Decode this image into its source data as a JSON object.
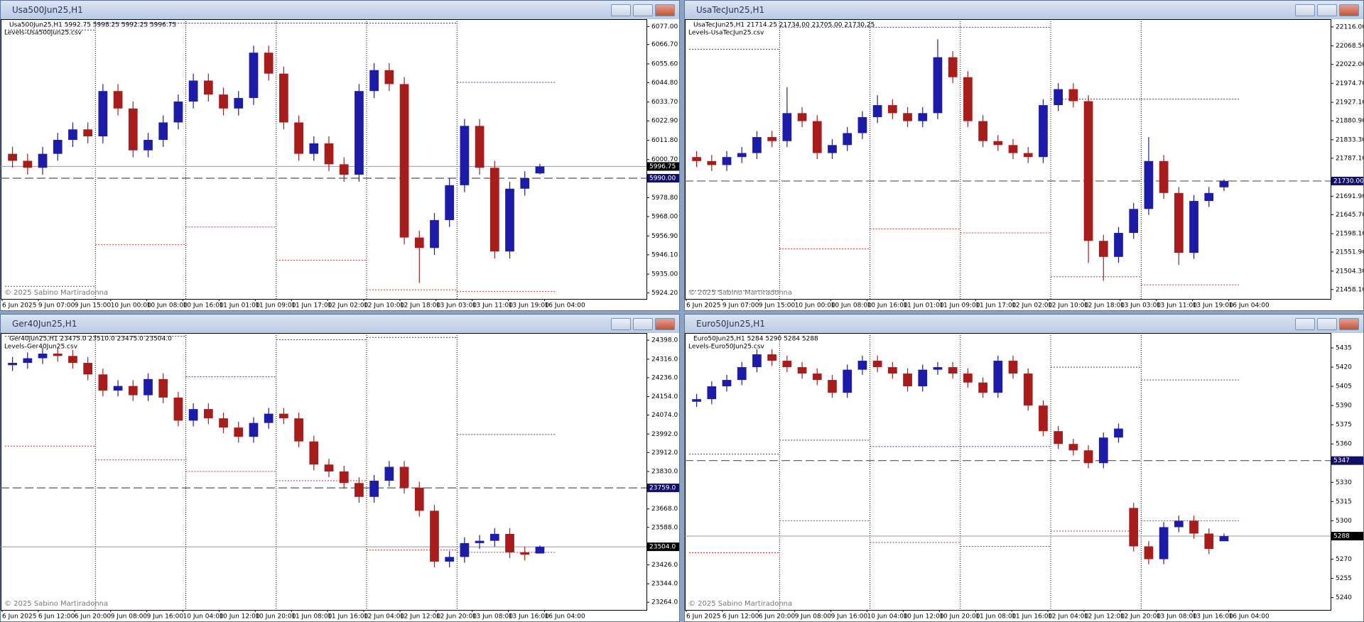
{
  "windows": [
    {
      "title": "Usa500Jun25,H1"
    },
    {
      "title": "UsaTecJun25,H1"
    },
    {
      "title": "Ger40Jun25,H1"
    },
    {
      "title": "Euro50Jun25,H1"
    }
  ],
  "chart_data": [
    {
      "type": "candlestick",
      "info": "Usa500Jun25,H1  5992.75 5998.25 5992.25 5996.75",
      "indicator": "Levels-Usa500Jun25.csv",
      "copyright": "© 2025 Sabino Martiradonna",
      "x_labels": [
        "6 Jun 2025",
        "9 Jun 07:00",
        "9 Jun 15:00",
        "10 Jun 00:00",
        "10 Jun 08:00",
        "10 Jun 16:00",
        "11 Jun 01:00",
        "11 Jun 09:00",
        "11 Jun 17:00",
        "12 Jun 02:00",
        "12 Jun 10:00",
        "12 Jun 18:00",
        "13 Jun 03:00",
        "13 Jun 11:00",
        "13 Jun 19:00",
        "16 Jun 04:00"
      ],
      "open": [
        6004,
        6000,
        5996,
        6004,
        6012,
        6018,
        6014,
        6040,
        6030,
        6006,
        6012,
        6022,
        6034,
        6046,
        6038,
        6030,
        6036,
        6062,
        6050,
        6022,
        6004,
        6010,
        5998,
        5992,
        6040,
        6052,
        6044,
        5956,
        5950,
        5966,
        5986,
        6020,
        5996,
        5948,
        5984,
        5992.75
      ],
      "high": [
        6008,
        6004,
        6008,
        6016,
        6022,
        6022,
        6044,
        6044,
        6034,
        6016,
        6026,
        6038,
        6050,
        6050,
        6042,
        6040,
        6066,
        6066,
        6054,
        6026,
        6014,
        6014,
        6002,
        6044,
        6056,
        6056,
        6048,
        5960,
        5970,
        5990,
        6024,
        6024,
        6000,
        5988,
        5994,
        5998.25
      ],
      "low": [
        5996,
        5992,
        5992,
        6000,
        6008,
        6010,
        6010,
        6026,
        6002,
        6002,
        6008,
        6018,
        6030,
        6034,
        6026,
        6026,
        6032,
        6046,
        6018,
        6000,
        6000,
        5994,
        5988,
        5988,
        6036,
        6040,
        5952,
        5930,
        5946,
        5962,
        5982,
        5992,
        5944,
        5944,
        5980,
        5992.25
      ],
      "close": [
        6000,
        5996,
        6004,
        6012,
        6018,
        6014,
        6040,
        6030,
        6006,
        6012,
        6022,
        6034,
        6046,
        6038,
        6030,
        6036,
        6062,
        6050,
        6022,
        6004,
        6010,
        5998,
        5992,
        6040,
        6052,
        6044,
        5956,
        5950,
        5966,
        5986,
        6020,
        5996,
        5948,
        5984,
        5990,
        5996.75
      ],
      "ylim": [
        5922,
        6080
      ],
      "yticks": [
        {
          "value": 6077,
          "label": "6077.00"
        },
        {
          "value": 6066.7,
          "label": "6066.70"
        },
        {
          "value": 6055.6,
          "label": "6055.60"
        },
        {
          "value": 6044.8,
          "label": "6044.80"
        },
        {
          "value": 6033.7,
          "label": "6033.70"
        },
        {
          "value": 6022.9,
          "label": "6022.90"
        },
        {
          "value": 6011.8,
          "label": "6011.80"
        },
        {
          "value": 6000.7,
          "label": "6000.70"
        },
        {
          "value": 5978.8,
          "label": "5978.80"
        },
        {
          "value": 5968,
          "label": "5968.00"
        },
        {
          "value": 5956.9,
          "label": "5956.90"
        },
        {
          "value": 5946.1,
          "label": "5946.10"
        },
        {
          "value": 5935,
          "label": "5935.00"
        },
        {
          "value": 5924.2,
          "label": "5924.20"
        }
      ],
      "level": {
        "value": 5990,
        "label": "5990.00"
      },
      "last": {
        "value": 5996.75,
        "label": "5996.75"
      },
      "upper_levels": {
        "color": "#3a3a80",
        "values": [
          6075,
          6079,
          6079,
          6079,
          6079,
          6045
        ]
      },
      "lower_levels": {
        "color": "#c03030",
        "values": [
          5928,
          5952,
          5962,
          5943,
          5926,
          5925
        ]
      },
      "up_color": "#1c1ca8",
      "down_color": "#a81c1c"
    },
    {
      "type": "candlestick",
      "info": "UsaTecJun25,H1  21714.25 21734.00 21705.00 21730.25",
      "indicator": "Levels-UsaTecJun25.csv",
      "copyright": "© 2025 Sabino Martiradonna",
      "x_labels": [
        "6 Jun 2025",
        "9 Jun 07:00",
        "9 Jun 15:00",
        "10 Jun 00:00",
        "10 Jun 08:00",
        "10 Jun 16:00",
        "11 Jun 01:00",
        "11 Jun 09:00",
        "11 Jun 17:00",
        "12 Jun 02:00",
        "12 Jun 10:00",
        "12 Jun 18:00",
        "13 Jun 03:00",
        "13 Jun 11:00",
        "13 Jun 19:00",
        "16 Jun 04:00"
      ],
      "open": [
        21790,
        21780,
        21770,
        21790,
        21800,
        21840,
        21830,
        21900,
        21880,
        21800,
        21820,
        21850,
        21890,
        21920,
        21900,
        21880,
        21900,
        22040,
        21990,
        21880,
        21830,
        21820,
        21800,
        21790,
        21920,
        21960,
        21930,
        21580,
        21540,
        21600,
        21660,
        21780,
        21700,
        21550,
        21680,
        21714.25
      ],
      "high": [
        21805,
        21795,
        21805,
        21815,
        21855,
        21855,
        21965,
        21915,
        21895,
        21835,
        21865,
        21905,
        21945,
        21935,
        21915,
        21915,
        22085,
        22055,
        22005,
        21895,
        21845,
        21835,
        21815,
        21935,
        21975,
        21975,
        21945,
        21595,
        21615,
        21675,
        21840,
        21795,
        21715,
        21695,
        21715,
        21734
      ],
      "low": [
        21765,
        21755,
        21755,
        21775,
        21785,
        21815,
        21815,
        21865,
        21785,
        21785,
        21805,
        21835,
        21875,
        21885,
        21865,
        21865,
        21885,
        21975,
        21865,
        21815,
        21805,
        21785,
        21775,
        21775,
        21905,
        21915,
        21525,
        21480,
        21525,
        21585,
        21645,
        21685,
        21520,
        21535,
        21665,
        21705
      ],
      "close": [
        21780,
        21770,
        21790,
        21800,
        21840,
        21830,
        21900,
        21880,
        21800,
        21820,
        21850,
        21890,
        21920,
        21900,
        21880,
        21900,
        22040,
        21990,
        21880,
        21830,
        21820,
        21800,
        21790,
        21920,
        21960,
        21930,
        21580,
        21540,
        21600,
        21660,
        21780,
        21700,
        21550,
        21680,
        21700,
        21730.25
      ],
      "ylim": [
        21440,
        22130
      ],
      "yticks": [
        {
          "value": 22116,
          "label": "22116.00"
        },
        {
          "value": 22068.5,
          "label": "22068.50"
        },
        {
          "value": 22022,
          "label": "22022.00"
        },
        {
          "value": 21974.7,
          "label": "21974.70"
        },
        {
          "value": 21927.1,
          "label": "21927.10"
        },
        {
          "value": 21880.9,
          "label": "21880.90"
        },
        {
          "value": 21833.3,
          "label": "21833.30"
        },
        {
          "value": 21787.1,
          "label": "21787.10"
        },
        {
          "value": 21691.9,
          "label": "21691.90"
        },
        {
          "value": 21645.7,
          "label": "21645.70"
        },
        {
          "value": 21598.1,
          "label": "21598.10"
        },
        {
          "value": 21551.9,
          "label": "21551.90"
        },
        {
          "value": 21504.3,
          "label": "21504.30"
        },
        {
          "value": 21458.1,
          "label": "21458.10"
        }
      ],
      "level": {
        "value": 21730,
        "label": "21730.00"
      },
      "upper_levels": {
        "color": "#3a3a80",
        "values": [
          22060,
          22115,
          22115,
          22115,
          21935,
          21935
        ]
      },
      "lower_levels": {
        "color": "#c03030",
        "values": [
          21455,
          21560,
          21610,
          21600,
          21490,
          21470
        ]
      },
      "up_color": "#1c1ca8",
      "down_color": "#a81c1c"
    },
    {
      "type": "candlestick",
      "info": "Ger40Jun25,H1  23475.0 23510.0 23475.0 23504.0",
      "indicator": "Levels-Ger40Jun25.csv",
      "copyright": "© 2025 Sabino Martiradonna",
      "x_labels": [
        "6 Jun 2025",
        "6 Jun 12:00",
        "6 Jun 20:00",
        "9 Jun 08:00",
        "9 Jun 16:00",
        "10 Jun 04:00",
        "10 Jun 12:00",
        "10 Jun 20:00",
        "11 Jun 08:00",
        "11 Jun 16:00",
        "12 Jun 04:00",
        "12 Jun 12:00",
        "12 Jun 20:00",
        "13 Jun 08:00",
        "13 Jun 16:00",
        "16 Jun 04:00"
      ],
      "open": [
        24290,
        24300,
        24320,
        24340,
        24330,
        24300,
        24250,
        24180,
        24200,
        24160,
        24230,
        24150,
        24050,
        24100,
        24060,
        24020,
        23980,
        24040,
        24080,
        24060,
        23960,
        23860,
        23830,
        23780,
        23720,
        23790,
        23850,
        23760,
        23660,
        23440,
        23460,
        23520,
        23530,
        23560,
        23480,
        23475
      ],
      "high": [
        24325,
        24345,
        24365,
        24365,
        24355,
        24325,
        24275,
        24225,
        24225,
        24255,
        24255,
        24175,
        24125,
        24125,
        24085,
        24045,
        24065,
        24105,
        24105,
        24085,
        23985,
        23885,
        23855,
        23805,
        23815,
        23875,
        23875,
        23785,
        23685,
        23485,
        23545,
        23555,
        23585,
        23585,
        23505,
        23510
      ],
      "low": [
        24265,
        24275,
        24295,
        24305,
        24275,
        24225,
        24155,
        24155,
        24135,
        24135,
        24125,
        24025,
        24025,
        24035,
        23995,
        23955,
        23955,
        24015,
        24035,
        23935,
        23835,
        23805,
        23755,
        23695,
        23695,
        23765,
        23735,
        23635,
        23415,
        23415,
        23435,
        23495,
        23505,
        23455,
        23445,
        23475
      ],
      "close": [
        24300,
        24320,
        24340,
        24330,
        24300,
        24250,
        24180,
        24200,
        24160,
        24230,
        24150,
        24050,
        24100,
        24060,
        24020,
        23980,
        24040,
        24080,
        24060,
        23960,
        23860,
        23830,
        23780,
        23720,
        23790,
        23850,
        23760,
        23660,
        23440,
        23460,
        23520,
        23530,
        23560,
        23480,
        23470,
        23504
      ],
      "ylim": [
        23240,
        24420
      ],
      "yticks": [
        {
          "value": 24398,
          "label": "24398.0"
        },
        {
          "value": 24316,
          "label": "24316.0"
        },
        {
          "value": 24236,
          "label": "24236.0"
        },
        {
          "value": 24154,
          "label": "24154.0"
        },
        {
          "value": 24074,
          "label": "24074.0"
        },
        {
          "value": 23992,
          "label": "23992.0"
        },
        {
          "value": 23912,
          "label": "23912.0"
        },
        {
          "value": 23830,
          "label": "23830.0"
        },
        {
          "value": 23668,
          "label": "23668.0"
        },
        {
          "value": 23588,
          "label": "23588.0"
        },
        {
          "value": 23426,
          "label": "23426.0"
        },
        {
          "value": 23344,
          "label": "23344.0"
        },
        {
          "value": 23264,
          "label": "23264.0"
        }
      ],
      "level": {
        "value": 23759,
        "label": "23759.0"
      },
      "last": {
        "value": 23504,
        "label": "23504.0"
      },
      "upper_levels": {
        "color": "#3a3a80",
        "values": [
          24415,
          24415,
          24240,
          24400,
          24410,
          23990
        ]
      },
      "lower_levels": {
        "color": "#c03030",
        "values": [
          23940,
          23880,
          23830,
          23790,
          23490,
          23480
        ]
      },
      "up_color": "#1c1ca8",
      "down_color": "#a81c1c"
    },
    {
      "type": "candlestick",
      "info": "Euro50Jun25,H1  5284 5290 5284 5288",
      "indicator": "Levels-Euro50Jun25.csv",
      "copyright": "© 2025 Sabino Martiradonna",
      "x_labels": [
        "6 Jun 2025",
        "6 Jun 12:00",
        "6 Jun 20:00",
        "9 Jun 08:00",
        "9 Jun 16:00",
        "10 Jun 04:00",
        "10 Jun 12:00",
        "10 Jun 20:00",
        "11 Jun 08:00",
        "11 Jun 16:00",
        "12 Jun 04:00",
        "12 Jun 12:00",
        "12 Jun 20:00",
        "13 Jun 08:00",
        "13 Jun 16:00",
        "16 Jun 04:00"
      ],
      "open": [
        5393,
        5395,
        5405,
        5410,
        5420,
        5430,
        5425,
        5420,
        5415,
        5410,
        5400,
        5418,
        5425,
        5420,
        5415,
        5405,
        5418,
        5420,
        5415,
        5408,
        5400,
        5425,
        5415,
        5390,
        5370,
        5360,
        5355,
        5345,
        5365,
        5310,
        5280,
        5270,
        5295,
        5300,
        5290,
        5284
      ],
      "high": [
        5399,
        5409,
        5414,
        5424,
        5434,
        5434,
        5429,
        5424,
        5419,
        5414,
        5422,
        5429,
        5429,
        5424,
        5419,
        5422,
        5424,
        5424,
        5419,
        5412,
        5429,
        5429,
        5419,
        5394,
        5374,
        5364,
        5359,
        5369,
        5376,
        5314,
        5284,
        5299,
        5304,
        5304,
        5294,
        5290
      ],
      "low": [
        5389,
        5391,
        5401,
        5406,
        5416,
        5421,
        5416,
        5411,
        5406,
        5396,
        5396,
        5414,
        5416,
        5411,
        5401,
        5401,
        5414,
        5411,
        5404,
        5396,
        5396,
        5411,
        5386,
        5366,
        5356,
        5351,
        5341,
        5341,
        5361,
        5276,
        5266,
        5266,
        5291,
        5286,
        5274,
        5284
      ],
      "close": [
        5395,
        5405,
        5410,
        5420,
        5430,
        5425,
        5420,
        5415,
        5410,
        5400,
        5418,
        5425,
        5420,
        5415,
        5405,
        5418,
        5420,
        5415,
        5408,
        5400,
        5425,
        5415,
        5390,
        5370,
        5360,
        5355,
        5345,
        5365,
        5372,
        5280,
        5270,
        5295,
        5300,
        5290,
        5278,
        5288
      ],
      "ylim": [
        5232,
        5445
      ],
      "yticks": [
        5435,
        5420,
        5405,
        5390,
        5375,
        5360,
        5330,
        5315,
        5300,
        5270,
        5255,
        5240
      ],
      "level": 5347,
      "last": 5288,
      "upper_levels": {
        "color": "#3a3a80",
        "values": [
          5352,
          5363,
          5358,
          5358,
          5420,
          5410
        ]
      },
      "lower_levels": {
        "color": "#c03030",
        "values": [
          5275,
          5300,
          5283,
          5280,
          5292,
          5300
        ]
      },
      "up_color": "#1c1ca8",
      "down_color": "#a81c1c"
    }
  ]
}
